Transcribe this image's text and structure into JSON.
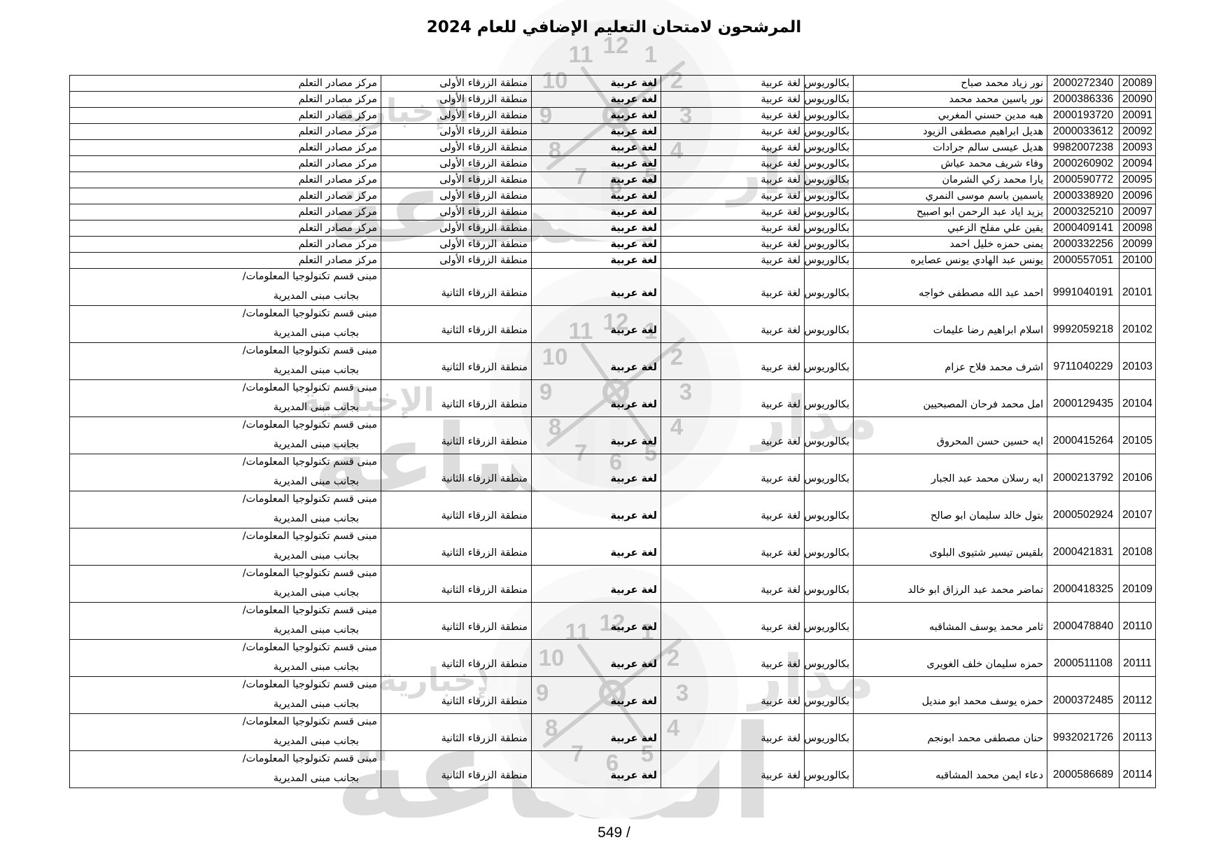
{
  "page": {
    "title": "المرشحون لامتحان التعليم الإضافي للعام 2024",
    "footer_page_number": "549 /"
  },
  "watermark": {
    "brand_small": "الإخبارية",
    "brand_big": "الساعة",
    "brand_side": "مدار",
    "clock_numbers": [
      "12",
      "1",
      "2",
      "3",
      "4",
      "5",
      "6",
      "7",
      "8",
      "9",
      "10",
      "11"
    ],
    "colors": {
      "ring_orange": "#F1A263",
      "ring_peach": "#FCDDC3",
      "face_gray": "#EEEEEE",
      "text_gray": "#D6D6D6"
    }
  },
  "table": {
    "shared": {
      "degree": "بكالوريوس",
      "specialization": "لغة عربية",
      "exam_subject": "لغة عربية",
      "region_first": "منطقة الزرقاء الأولى",
      "region_second": "منطقة الزرقاء الثانية",
      "center_resources": "مركز مصادر التعلم",
      "center_it_line1": "مبنى قسم تكنولوجيا المعلومات/",
      "center_it_line2": "بجانب مبنى المديرية"
    },
    "rows": [
      {
        "serial": "20089",
        "national_id": "2000272340",
        "name": "نور زياد محمد صباح",
        "degree": "بكالوريوس",
        "specialization": "لغة عربية",
        "exam_subject": "لغة عربية",
        "region": "منطقة الزرقاء الأولى",
        "center_line1": "مركز مصادر التعلم",
        "center_line2": ""
      },
      {
        "serial": "20090",
        "national_id": "2000386336",
        "name": "نور ياسين محمد محمد",
        "degree": "بكالوريوس",
        "specialization": "لغة عربية",
        "exam_subject": "لغة عربية",
        "region": "منطقة الزرقاء الأولى",
        "center_line1": "مركز مصادر التعلم",
        "center_line2": ""
      },
      {
        "serial": "20091",
        "national_id": "2000193720",
        "name": "هبه مدين حسني المغربي",
        "degree": "بكالوريوس",
        "specialization": "لغة عربية",
        "exam_subject": "لغة عربية",
        "region": "منطقة الزرقاء الأولى",
        "center_line1": "مركز مصادر التعلم",
        "center_line2": ""
      },
      {
        "serial": "20092",
        "national_id": "2000033612",
        "name": "هديل ابراهيم مصطفى الزيود",
        "degree": "بكالوريوس",
        "specialization": "لغة عربية",
        "exam_subject": "لغة عربية",
        "region": "منطقة الزرقاء الأولى",
        "center_line1": "مركز مصادر التعلم",
        "center_line2": ""
      },
      {
        "serial": "20093",
        "national_id": "9982007238",
        "name": "هديل عيسى سالم جرادات",
        "degree": "بكالوريوس",
        "specialization": "لغة عربية",
        "exam_subject": "لغة عربية",
        "region": "منطقة الزرقاء الأولى",
        "center_line1": "مركز مصادر التعلم",
        "center_line2": ""
      },
      {
        "serial": "20094",
        "national_id": "2000260902",
        "name": "وفاء شريف محمد عياش",
        "degree": "بكالوريوس",
        "specialization": "لغة عربية",
        "exam_subject": "لغة عربية",
        "region": "منطقة الزرقاء الأولى",
        "center_line1": "مركز مصادر التعلم",
        "center_line2": ""
      },
      {
        "serial": "20095",
        "national_id": "2000590772",
        "name": "يارا محمد زكي الشرمان",
        "degree": "بكالوريوس",
        "specialization": "لغة عربية",
        "exam_subject": "لغة عربية",
        "region": "منطقة الزرقاء الأولى",
        "center_line1": "مركز مصادر التعلم",
        "center_line2": ""
      },
      {
        "serial": "20096",
        "national_id": "2000338920",
        "name": "ياسمين باسم موسى النمري",
        "degree": "بكالوريوس",
        "specialization": "لغة عربية",
        "exam_subject": "لغة عربية",
        "region": "منطقة الزرقاء الأولى",
        "center_line1": "مركز مصادر التعلم",
        "center_line2": ""
      },
      {
        "serial": "20097",
        "national_id": "2000325210",
        "name": "يزيد اياد عبد الرحمن ابو اصبيح",
        "degree": "بكالوريوس",
        "specialization": "لغة عربية",
        "exam_subject": "لغة عربية",
        "region": "منطقة الزرقاء الأولى",
        "center_line1": "مركز مصادر التعلم",
        "center_line2": ""
      },
      {
        "serial": "20098",
        "national_id": "2000409141",
        "name": "يقين علي مفلح الزعبي",
        "degree": "بكالوريوس",
        "specialization": "لغة عربية",
        "exam_subject": "لغة عربية",
        "region": "منطقة الزرقاء الأولى",
        "center_line1": "مركز مصادر التعلم",
        "center_line2": ""
      },
      {
        "serial": "20099",
        "national_id": "2000332256",
        "name": "يمنى حمزه خليل احمد",
        "degree": "بكالوريوس",
        "specialization": "لغة عربية",
        "exam_subject": "لغة عربية",
        "region": "منطقة الزرقاء الأولى",
        "center_line1": "مركز مصادر التعلم",
        "center_line2": ""
      },
      {
        "serial": "20100",
        "national_id": "2000557051",
        "name": "يونس عبد الهادي يونس عصايره",
        "degree": "بكالوريوس",
        "specialization": "لغة عربية",
        "exam_subject": "لغة عربية",
        "region": "منطقة الزرقاء الأولى",
        "center_line1": "مركز مصادر التعلم",
        "center_line2": ""
      },
      {
        "serial": "20101",
        "national_id": "9991040191",
        "name": "احمد عبد الله مصطفى خواجه",
        "degree": "بكالوريوس",
        "specialization": "لغة عربية",
        "exam_subject": "لغة عربية",
        "region": "منطقة الزرقاء الثانية",
        "center_line1": "مبنى قسم تكنولوجيا المعلومات/",
        "center_line2": "بجانب مبنى المديرية"
      },
      {
        "serial": "20102",
        "national_id": "9992059218",
        "name": "اسلام ابراهيم رضا عليمات",
        "degree": "بكالوريوس",
        "specialization": "لغة عربية",
        "exam_subject": "لغة عربية",
        "region": "منطقة الزرقاء الثانية",
        "center_line1": "مبنى قسم تكنولوجيا المعلومات/",
        "center_line2": "بجانب مبنى المديرية"
      },
      {
        "serial": "20103",
        "national_id": "9711040229",
        "name": "اشرف محمد فلاح عزام",
        "degree": "بكالوريوس",
        "specialization": "لغة عربية",
        "exam_subject": "لغة عربية",
        "region": "منطقة الزرقاء الثانية",
        "center_line1": "مبنى قسم تكنولوجيا المعلومات/",
        "center_line2": "بجانب مبنى المديرية"
      },
      {
        "serial": "20104",
        "national_id": "2000129435",
        "name": "امل محمد فرحان المصبحيين",
        "degree": "بكالوريوس",
        "specialization": "لغة عربية",
        "exam_subject": "لغة عربية",
        "region": "منطقة الزرقاء الثانية",
        "center_line1": "مبنى قسم تكنولوجيا المعلومات/",
        "center_line2": "بجانب مبنى المديرية"
      },
      {
        "serial": "20105",
        "national_id": "2000415264",
        "name": "ايه حسين حسن المحروق",
        "degree": "بكالوريوس",
        "specialization": "لغة عربية",
        "exam_subject": "لغة عربية",
        "region": "منطقة الزرقاء الثانية",
        "center_line1": "مبنى قسم تكنولوجيا المعلومات/",
        "center_line2": "بجانب مبنى المديرية"
      },
      {
        "serial": "20106",
        "national_id": "2000213792",
        "name": "ايه رسلان محمد عبد الجبار",
        "degree": "بكالوريوس",
        "specialization": "لغة عربية",
        "exam_subject": "لغة عربية",
        "region": "منطقة الزرقاء الثانية",
        "center_line1": "مبنى قسم تكنولوجيا المعلومات/",
        "center_line2": "بجانب مبنى المديرية"
      },
      {
        "serial": "20107",
        "national_id": "2000502924",
        "name": "بتول خالد سليمان ابو صالح",
        "degree": "بكالوريوس",
        "specialization": "لغة عربية",
        "exam_subject": "لغة عربية",
        "region": "منطقة الزرقاء الثانية",
        "center_line1": "مبنى قسم تكنولوجيا المعلومات/",
        "center_line2": "بجانب مبنى المديرية"
      },
      {
        "serial": "20108",
        "national_id": "2000421831",
        "name": "بلقيس تيسير شتيوى البلوى",
        "degree": "بكالوريوس",
        "specialization": "لغة عربية",
        "exam_subject": "لغة عربية",
        "region": "منطقة الزرقاء الثانية",
        "center_line1": "مبنى قسم تكنولوجيا المعلومات/",
        "center_line2": "بجانب مبنى المديرية"
      },
      {
        "serial": "20109",
        "national_id": "2000418325",
        "name": "تماضر محمد عبد الرزاق ابو خالد",
        "degree": "بكالوريوس",
        "specialization": "لغة عربية",
        "exam_subject": "لغة عربية",
        "region": "منطقة الزرقاء الثانية",
        "center_line1": "مبنى قسم تكنولوجيا المعلومات/",
        "center_line2": "بجانب مبنى المديرية"
      },
      {
        "serial": "20110",
        "national_id": "2000478840",
        "name": "ثامر محمد يوسف المشاقبه",
        "degree": "بكالوريوس",
        "specialization": "لغة عربية",
        "exam_subject": "لغة عربية",
        "region": "منطقة الزرقاء الثانية",
        "center_line1": "مبنى قسم تكنولوجيا المعلومات/",
        "center_line2": "بجانب مبنى المديرية"
      },
      {
        "serial": "20111",
        "national_id": "2000511108",
        "name": "حمزه سليمان خلف الغويرى",
        "degree": "بكالوريوس",
        "specialization": "لغة عربية",
        "exam_subject": "لغة عربية",
        "region": "منطقة الزرقاء الثانية",
        "center_line1": "مبنى قسم تكنولوجيا المعلومات/",
        "center_line2": "بجانب مبنى المديرية"
      },
      {
        "serial": "20112",
        "national_id": "2000372485",
        "name": "حمزه يوسف محمد ابو منديل",
        "degree": "بكالوريوس",
        "specialization": "لغة عربية",
        "exam_subject": "لغة عربية",
        "region": "منطقة الزرقاء الثانية",
        "center_line1": "مبنى قسم تكنولوجيا المعلومات/",
        "center_line2": "بجانب مبنى المديرية"
      },
      {
        "serial": "20113",
        "national_id": "9932021726",
        "name": "حنان مصطفى محمد ابونجم",
        "degree": "بكالوريوس",
        "specialization": "لغة عربية",
        "exam_subject": "لغة عربية",
        "region": "منطقة الزرقاء الثانية",
        "center_line1": "مبنى قسم تكنولوجيا المعلومات/",
        "center_line2": "بجانب مبنى المديرية"
      },
      {
        "serial": "20114",
        "national_id": "2000586689",
        "name": "دعاء ايمن محمد المشاقبه",
        "degree": "بكالوريوس",
        "specialization": "لغة عربية",
        "exam_subject": "لغة عربية",
        "region": "منطقة الزرقاء الثانية",
        "center_line1": "مبنى قسم تكنولوجيا المعلومات/",
        "center_line2": "بجانب مبنى المديرية"
      }
    ]
  }
}
